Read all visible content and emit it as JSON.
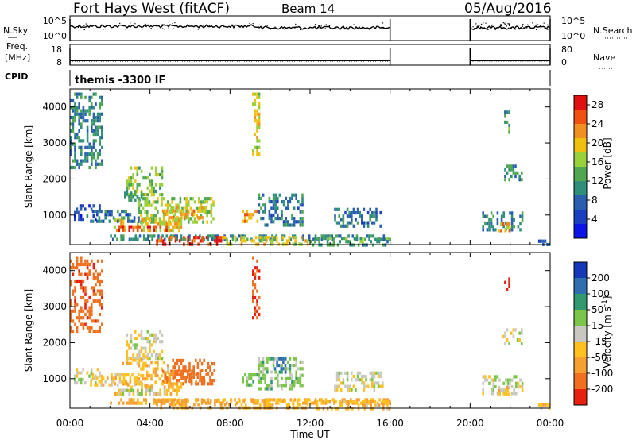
{
  "header": {
    "station": "Fort Hays West (fitACF)",
    "beam": "Beam 14",
    "date": "05/Aug/2016"
  },
  "status_panel": {
    "left_labels": {
      "nsky": "N.Sky",
      "freq_1": "Freq.",
      "freq_2": "[MHz]",
      "cpid": "CPID"
    },
    "right_labels": {
      "nsearch": "N.Search",
      "nave": "Nave"
    },
    "nsky_ticks": [
      "10^5",
      "10^0"
    ],
    "nsearch_ticks": [
      "10^5",
      "10^0"
    ],
    "freq_ticks": [
      "18",
      "8"
    ],
    "nave_ticks": [
      "80",
      "0"
    ],
    "cpid_text": "themis -3300 IF",
    "data_intervals_hours": [
      [
        0,
        16
      ],
      [
        20,
        24
      ]
    ],
    "freq_mhz": 10.5
  },
  "colors": {
    "power_scale": [
      "#0a14e6",
      "#1a3fbf",
      "#2a5fb0",
      "#2f8f7a",
      "#4fa84f",
      "#9ad13a",
      "#f0c010",
      "#f09020",
      "#f05010",
      "#e01010"
    ],
    "velocity_scale": [
      "#1538b8",
      "#2f6fb0",
      "#2f9a6f",
      "#7bc64a",
      "#c8c8c0",
      "#ffc020",
      "#f5a030",
      "#f07020",
      "#e82010"
    ]
  },
  "chart_data": [
    {
      "type": "heatmap",
      "name": "power",
      "xlabel": "",
      "ylabel": "Slant Range [km]",
      "xlim": [
        0,
        24
      ],
      "ylim": [
        180,
        4500
      ],
      "xticks": [
        "00:00",
        "04:00",
        "08:00",
        "12:00",
        "16:00",
        "20:00",
        "00:00"
      ],
      "yticks": [
        1000,
        2000,
        3000,
        4000
      ],
      "colorbar": {
        "label": "Power [dB]",
        "ticks": [
          4,
          8,
          12,
          16,
          20,
          24,
          28
        ],
        "range": [
          0,
          30
        ]
      },
      "regions": [
        {
          "t": [
            2.8,
            4.6
          ],
          "r": [
            1550,
            2350
          ],
          "v": 15
        },
        {
          "t": [
            2.6,
            3.8
          ],
          "r": [
            1400,
            1650
          ],
          "v": 11
        },
        {
          "t": [
            3.4,
            7.2
          ],
          "r": [
            780,
            1500
          ],
          "v": 16
        },
        {
          "t": [
            4.6,
            6.8
          ],
          "r": [
            900,
            1250
          ],
          "v": 21
        },
        {
          "t": [
            2.2,
            5.6
          ],
          "r": [
            600,
            900
          ],
          "v": 19
        },
        {
          "t": [
            2.4,
            4.8
          ],
          "r": [
            560,
            720
          ],
          "v": 27
        },
        {
          "t": [
            1.0,
            3.4
          ],
          "r": [
            820,
            1150
          ],
          "v": 9
        },
        {
          "t": [
            0.2,
            1.6
          ],
          "r": [
            900,
            1300
          ],
          "v": 6
        },
        {
          "t": [
            2.0,
            16.0
          ],
          "r": [
            300,
            460
          ],
          "v": 10
        },
        {
          "t": [
            4.2,
            7.6
          ],
          "r": [
            200,
            420
          ],
          "v": 27
        },
        {
          "t": [
            7.6,
            12.0
          ],
          "r": [
            200,
            420
          ],
          "v": 18
        },
        {
          "t": [
            12.0,
            16.0
          ],
          "r": [
            200,
            400
          ],
          "v": 12
        },
        {
          "t": [
            9.4,
            11.6
          ],
          "r": [
            750,
            1600
          ],
          "v": 9
        },
        {
          "t": [
            8.6,
            9.4
          ],
          "r": [
            850,
            1150
          ],
          "v": 22
        },
        {
          "t": [
            13.2,
            15.6
          ],
          "r": [
            700,
            1200
          ],
          "v": 9
        },
        {
          "t": [
            20.6,
            22.6
          ],
          "r": [
            550,
            1100
          ],
          "v": 10
        },
        {
          "t": [
            21.4,
            22.0
          ],
          "r": [
            580,
            800
          ],
          "v": 21
        },
        {
          "t": [
            21.6,
            22.6
          ],
          "r": [
            2000,
            2400
          ],
          "v": 11
        },
        {
          "t": [
            21.7,
            22.0
          ],
          "r": [
            3300,
            3900
          ],
          "v": 12
        },
        {
          "t": [
            9.1,
            9.5
          ],
          "r": [
            2700,
            4400
          ],
          "v": 18
        },
        {
          "t": [
            0.0,
            1.6
          ],
          "r": [
            2300,
            4400
          ],
          "v": 10
        },
        {
          "t": [
            23.4,
            24.0
          ],
          "r": [
            200,
            320
          ],
          "v": 8
        }
      ]
    },
    {
      "type": "heatmap",
      "name": "velocity",
      "xlabel": "Time UT",
      "ylabel": "Slant Range [km]",
      "xlim": [
        0,
        24
      ],
      "ylim": [
        180,
        4500
      ],
      "xticks": [
        "00:00",
        "04:00",
        "08:00",
        "12:00",
        "16:00",
        "20:00",
        "00:00"
      ],
      "yticks": [
        1000,
        2000,
        3000,
        4000
      ],
      "colorbar": {
        "label": "Velocity [m s^-1]",
        "ticks": [
          "200",
          "100",
          "50",
          "15",
          "-15",
          "-50",
          "-100",
          "-200"
        ],
        "range": [
          -250,
          250
        ]
      },
      "regions": [
        {
          "t": [
            2.8,
            4.6
          ],
          "r": [
            1550,
            2350
          ],
          "v": -5
        },
        {
          "t": [
            2.6,
            3.8
          ],
          "r": [
            1400,
            1650
          ],
          "v": -40
        },
        {
          "t": [
            3.4,
            5.0
          ],
          "r": [
            780,
            1500
          ],
          "v": -40
        },
        {
          "t": [
            5.0,
            7.2
          ],
          "r": [
            850,
            1550
          ],
          "v": -160
        },
        {
          "t": [
            4.6,
            6.8
          ],
          "r": [
            900,
            1250
          ],
          "v": -120
        },
        {
          "t": [
            2.2,
            5.6
          ],
          "r": [
            600,
            900
          ],
          "v": -45
        },
        {
          "t": [
            2.4,
            4.8
          ],
          "r": [
            560,
            720
          ],
          "v": 0
        },
        {
          "t": [
            1.0,
            3.4
          ],
          "r": [
            820,
            1150
          ],
          "v": -30
        },
        {
          "t": [
            0.2,
            1.6
          ],
          "r": [
            900,
            1300
          ],
          "v": 0
        },
        {
          "t": [
            2.0,
            16.0
          ],
          "r": [
            300,
            460
          ],
          "v": -60
        },
        {
          "t": [
            4.2,
            7.6
          ],
          "r": [
            200,
            420
          ],
          "v": -70
        },
        {
          "t": [
            7.6,
            12.0
          ],
          "r": [
            200,
            420
          ],
          "v": -45
        },
        {
          "t": [
            12.0,
            16.0
          ],
          "r": [
            200,
            400
          ],
          "v": -40
        },
        {
          "t": [
            9.4,
            11.6
          ],
          "r": [
            750,
            1600
          ],
          "v": 30
        },
        {
          "t": [
            8.6,
            9.4
          ],
          "r": [
            850,
            1150
          ],
          "v": 40
        },
        {
          "t": [
            10.2,
            10.8
          ],
          "r": [
            1200,
            1600
          ],
          "v": 150
        },
        {
          "t": [
            13.2,
            15.6
          ],
          "r": [
            700,
            1200
          ],
          "v": 0
        },
        {
          "t": [
            20.6,
            22.6
          ],
          "r": [
            550,
            1100
          ],
          "v": 0
        },
        {
          "t": [
            21.4,
            22.0
          ],
          "r": [
            580,
            800
          ],
          "v": -30
        },
        {
          "t": [
            21.6,
            22.6
          ],
          "r": [
            2000,
            2400
          ],
          "v": -5
        },
        {
          "t": [
            21.7,
            22.0
          ],
          "r": [
            3300,
            3900
          ],
          "v": -220
        },
        {
          "t": [
            9.1,
            9.5
          ],
          "r": [
            2700,
            4400
          ],
          "v": -200
        },
        {
          "t": [
            0.0,
            1.6
          ],
          "r": [
            2300,
            4400
          ],
          "v": -180
        },
        {
          "t": [
            23.4,
            24.0
          ],
          "r": [
            200,
            320
          ],
          "v": -40
        }
      ]
    }
  ]
}
